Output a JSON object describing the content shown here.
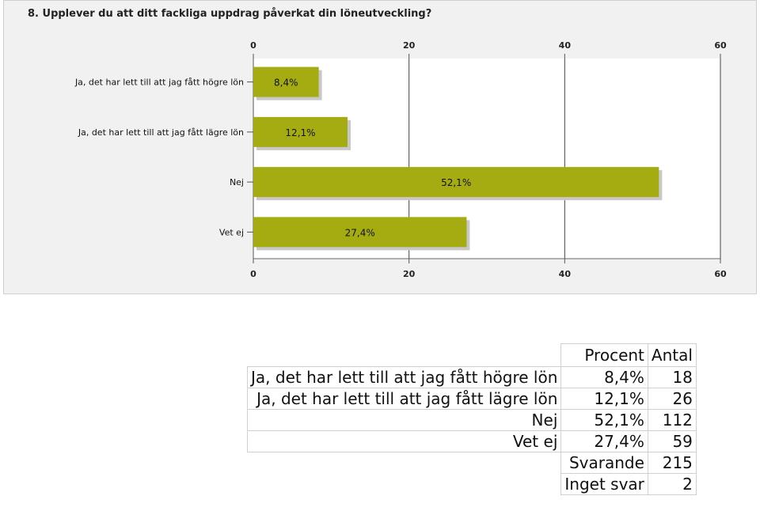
{
  "chart_title": "8. Upplever du att ditt fackliga uppdrag påverkat din löneutveckling?",
  "chart_data": {
    "type": "bar",
    "orientation": "horizontal",
    "title": "8. Upplever du att ditt fackliga uppdrag påverkat din löneutveckling?",
    "categories": [
      "Ja, det har lett till att jag fått högre lön",
      "Ja, det har lett till att jag fått lägre lön",
      "Nej",
      "Vet ej"
    ],
    "values": [
      8.4,
      12.1,
      52.1,
      27.4
    ],
    "value_labels": [
      "8,4%",
      "12,1%",
      "52,1%",
      "27,4%"
    ],
    "xlim": [
      0,
      60
    ],
    "xticks": [
      "0",
      "20",
      "40",
      "60"
    ],
    "grid": true,
    "bar_color": "#a4ac12"
  },
  "table": {
    "headers": [
      "Procent",
      "Antal"
    ],
    "rows": [
      {
        "label": "Ja, det har lett till att jag fått högre lön",
        "percent": "8,4%",
        "count": "18"
      },
      {
        "label": "Ja, det har lett till att jag fått lägre lön",
        "percent": "12,1%",
        "count": "26"
      },
      {
        "label": "Nej",
        "percent": "52,1%",
        "count": "112"
      },
      {
        "label": "Vet ej",
        "percent": "27,4%",
        "count": "59"
      }
    ],
    "totals": [
      {
        "label": "Svarande",
        "count": "215"
      },
      {
        "label": "Inget svar",
        "count": "2"
      }
    ]
  }
}
